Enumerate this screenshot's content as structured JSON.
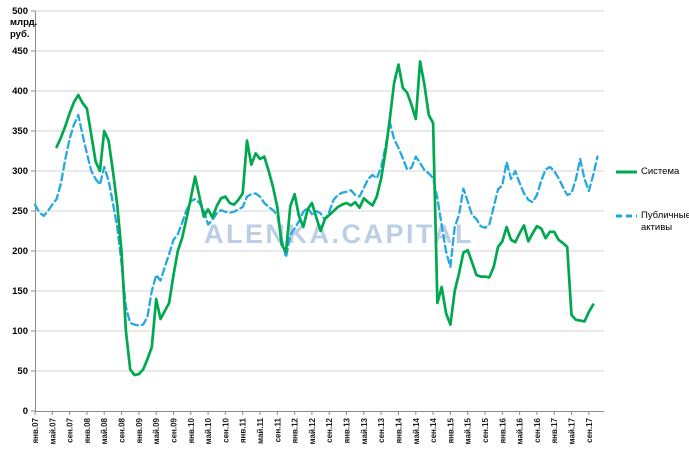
{
  "watermark_text": "ALENKA.CAPITAL",
  "legend": {
    "items": [
      {
        "label": "Система"
      },
      {
        "label": "Публичные активы"
      }
    ]
  },
  "chart_data": {
    "type": "line",
    "title": "",
    "y_axis_unit_lines": [
      "млрд.",
      "руб."
    ],
    "ylim": [
      0,
      500
    ],
    "y_tick_step": 50,
    "y_tick_labels": [
      "0",
      "50",
      "100",
      "150",
      "200",
      "250",
      "300",
      "350",
      "400",
      "450",
      "500"
    ],
    "x_tick_month_step": 4,
    "months_domain": 131.5,
    "grid": true,
    "legend_position": "right",
    "watermark": "ALENKA.CAPITAL",
    "x_tick_labels": [
      "янв.07",
      "май.07",
      "сен.07",
      "янв.08",
      "май.08",
      "сен.08",
      "янв.09",
      "май.09",
      "сен.09",
      "янв.10",
      "май.10",
      "сен.10",
      "янв.11",
      "май.11",
      "сен.11",
      "янв.12",
      "май.12",
      "сен.12",
      "янв.13",
      "май.13",
      "сен.13",
      "янв.14",
      "май.14",
      "сен.14",
      "янв.15",
      "май.15",
      "сен.15",
      "янв.16",
      "май.16",
      "сен.16",
      "янв.17",
      "май.17",
      "сен.17"
    ],
    "series": [
      {
        "name": "Система",
        "color": "#00a84f",
        "line_style": "solid",
        "start_month_index": 5,
        "start_month_label": "июн.07",
        "monthly_values": [
          330,
          342,
          356,
          372,
          386,
          395,
          385,
          378,
          345,
          312,
          300,
          350,
          338,
          300,
          258,
          200,
          100,
          52,
          45,
          46,
          52,
          65,
          80,
          140,
          115,
          125,
          135,
          170,
          200,
          216,
          240,
          266,
          293,
          268,
          243,
          252,
          242,
          256,
          266,
          268,
          260,
          258,
          264,
          272,
          338,
          308,
          322,
          315,
          318,
          300,
          280,
          255,
          208,
          199,
          256,
          271,
          244,
          230,
          252,
          260,
          242,
          225,
          240,
          245,
          250,
          255,
          258,
          260,
          257,
          261,
          254,
          266,
          261,
          257,
          268,
          291,
          324,
          365,
          410,
          433,
          404,
          398,
          383,
          365,
          437,
          408,
          370,
          360,
          135,
          155,
          122,
          108,
          150,
          172,
          198,
          201,
          186,
          170,
          168,
          168,
          167,
          180,
          205,
          212,
          230,
          214,
          211,
          222,
          232,
          212,
          222,
          231,
          228,
          216,
          224,
          224,
          214,
          210,
          205,
          120,
          114,
          113,
          112,
          124,
          133
        ]
      },
      {
        "name": "Публичные активы",
        "color": "#25a8e0",
        "line_style": "dashed",
        "start_month_index": 0,
        "start_month_label": "янв.07",
        "monthly_values": [
          258,
          248,
          244,
          250,
          258,
          265,
          285,
          315,
          340,
          358,
          370,
          345,
          322,
          300,
          290,
          283,
          305,
          288,
          260,
          230,
          185,
          130,
          110,
          108,
          107,
          108,
          118,
          150,
          170,
          163,
          180,
          196,
          214,
          221,
          235,
          251,
          262,
          265,
          260,
          251,
          233,
          239,
          247,
          251,
          249,
          248,
          249,
          252,
          255,
          268,
          271,
          272,
          268,
          260,
          255,
          251,
          245,
          215,
          192,
          220,
          228,
          237,
          249,
          254,
          246,
          250,
          247,
          239,
          249,
          264,
          270,
          273,
          274,
          276,
          270,
          268,
          279,
          290,
          295,
          291,
          305,
          330,
          361,
          340,
          329,
          316,
          302,
          304,
          318,
          310,
          301,
          297,
          291,
          266,
          232,
          199,
          180,
          230,
          245,
          278,
          262,
          245,
          240,
          231,
          229,
          233,
          255,
          277,
          282,
          311,
          290,
          300,
          285,
          272,
          264,
          261,
          270,
          288,
          302,
          305,
          300,
          291,
          280,
          270,
          272,
          290,
          315,
          290,
          275,
          295,
          318
        ]
      }
    ]
  }
}
